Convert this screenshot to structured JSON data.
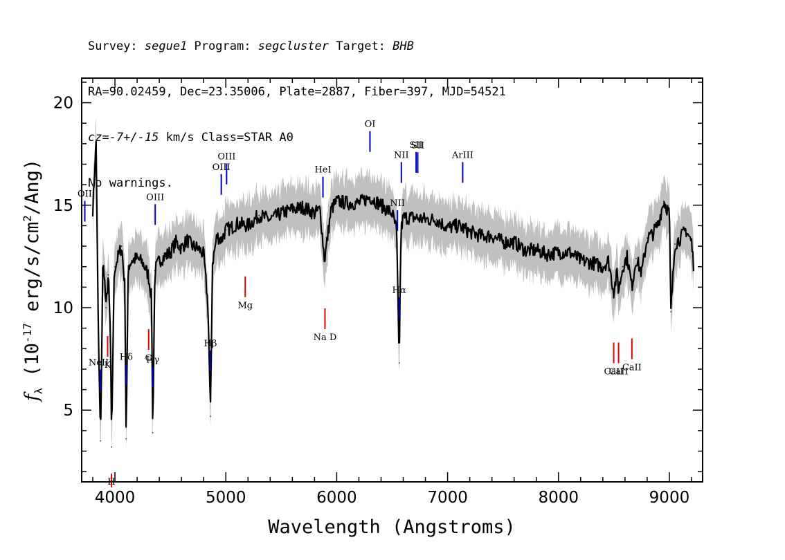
{
  "header": {
    "line1": {
      "survey_label": "Survey: ",
      "survey": "segue1",
      "program_label": " Program: ",
      "program": "segcluster",
      "target_label": " Target: ",
      "target": "BHB"
    },
    "line2": "RA=90.02459, Dec=23.35006, Plate=2887, Fiber=397, MJD=54521",
    "line3": {
      "cz": "cz=-7+/-15",
      "rest": " km/s Class=STAR A0"
    },
    "line4": "No warnings."
  },
  "chart_data": {
    "type": "line",
    "xlabel": "Wavelength (Angstroms)",
    "ylabel": "f_λ (10^-17 erg/s/cm^2/Ang)",
    "xlim": [
      3700,
      9300
    ],
    "ylim": [
      1.5,
      21.2
    ],
    "xticks": [
      4000,
      5000,
      6000,
      7000,
      8000,
      9000
    ],
    "yticks": [
      5,
      10,
      15,
      20
    ],
    "colors": {
      "flux": "#000000",
      "model": "#c0c0c0",
      "emission": "#0000cc",
      "absorption": "#dd0000"
    },
    "series": [
      {
        "x": [
          3800,
          3830,
          3850,
          3870,
          3890,
          3900,
          3920,
          3940,
          3960,
          3970,
          3990,
          4000,
          4030,
          4060,
          4090,
          4101,
          4120,
          4150,
          4200,
          4250,
          4300,
          4330,
          4341,
          4360,
          4400,
          4450,
          4500,
          4550,
          4600,
          4650,
          4700,
          4750,
          4800,
          4840,
          4861,
          4880,
          4920,
          4960,
          5000,
          5050,
          5100,
          5200,
          5300,
          5400,
          5500,
          5600,
          5700,
          5800,
          5850,
          5890,
          5950,
          6000,
          6100,
          6200,
          6300,
          6400,
          6450,
          6500,
          6540,
          6563,
          6580,
          6600,
          6700,
          6800,
          6900,
          7000,
          7100,
          7200,
          7300,
          7400,
          7500,
          7600,
          7700,
          7800,
          7900,
          8000,
          8100,
          8200,
          8300,
          8400,
          8450,
          8498,
          8530,
          8542,
          8580,
          8620,
          8662,
          8700,
          8750,
          8800,
          8850,
          8900,
          8950,
          9000,
          9014,
          9050,
          9100,
          9150,
          9200,
          9220
        ],
        "y": [
          14.8,
          18.1,
          8.8,
          3.5,
          11.8,
          12.0,
          10.0,
          11.6,
          8.5,
          3.2,
          11.0,
          12.0,
          12.5,
          13.0,
          11.0,
          3.6,
          12.0,
          12.3,
          12.4,
          12.2,
          11.6,
          10.5,
          3.9,
          11.8,
          12.3,
          12.5,
          12.7,
          13.2,
          12.9,
          13.3,
          13.0,
          12.9,
          12.6,
          10.0,
          4.7,
          12.2,
          13.5,
          13.3,
          13.8,
          13.9,
          14.1,
          14.0,
          14.5,
          14.3,
          14.6,
          14.8,
          14.9,
          14.6,
          14.8,
          12.3,
          14.8,
          15.2,
          15.1,
          15.1,
          15.4,
          15.0,
          14.8,
          14.6,
          13.8,
          7.3,
          13.8,
          14.4,
          14.4,
          14.3,
          14.3,
          13.9,
          14.0,
          13.7,
          13.5,
          13.5,
          13.2,
          13.2,
          12.8,
          12.8,
          12.6,
          12.7,
          12.7,
          12.3,
          12.2,
          12.0,
          12.3,
          10.8,
          11.7,
          10.8,
          12.0,
          12.5,
          11.0,
          12.4,
          11.7,
          13.4,
          13.6,
          14.1,
          15.2,
          14.6,
          9.8,
          13.1,
          13.4,
          13.8,
          13.2,
          12.0
        ]
      }
    ],
    "emission_lines": [
      {
        "label": "OII",
        "x": 3728
      },
      {
        "label": "NeIII",
        "x": 3869
      },
      {
        "label": "Hδ",
        "x": 4102
      },
      {
        "label": "Hγ",
        "x": 4341
      },
      {
        "label": "OIII",
        "x": 4363
      },
      {
        "label": "Hβ",
        "x": 4861
      },
      {
        "label": "OIII",
        "x": 4959
      },
      {
        "label": "OIII",
        "x": 5007
      },
      {
        "label": "HeI",
        "x": 5876
      },
      {
        "label": "OI",
        "x": 6300
      },
      {
        "label": "NII",
        "x": 6548
      },
      {
        "label": "Hα",
        "x": 6563
      },
      {
        "label": "NII",
        "x": 6583
      },
      {
        "label": "SII",
        "x": 6716
      },
      {
        "label": "SII",
        "x": 6731
      },
      {
        "label": "ArIII",
        "x": 7136
      }
    ],
    "absorption_lines": [
      {
        "label": "K",
        "x": 3934
      },
      {
        "label": "H",
        "x": 3969
      },
      {
        "label": "G",
        "x": 4304
      },
      {
        "label": "Mg",
        "x": 5175
      },
      {
        "label": "Na D",
        "x": 5894
      },
      {
        "label": "CaII",
        "x": 8498
      },
      {
        "label": "CaII",
        "x": 8542
      },
      {
        "label": "CaII",
        "x": 8662
      }
    ]
  }
}
